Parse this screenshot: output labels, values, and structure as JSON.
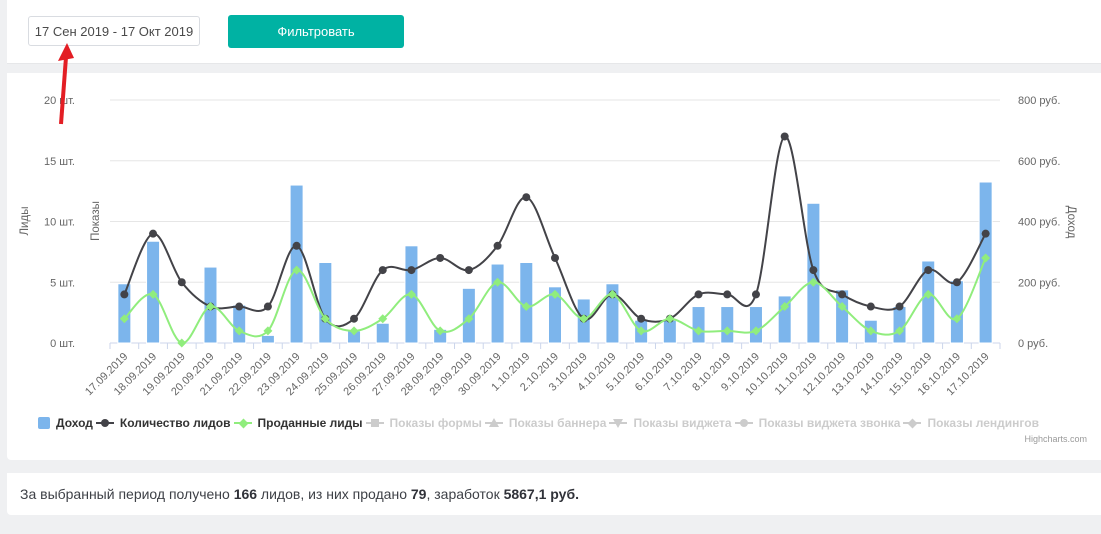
{
  "colors": {
    "accent_teal": "#00b2a3",
    "bar_blue": "#7cb5ec",
    "line_dark": "#434348",
    "line_green": "#90ed7d",
    "disabled_gray": "#cccccc",
    "arrow_red": "#e31e24",
    "tick_text": "#666666",
    "gridline": "#e6e6e6",
    "axis_line": "#ccd6eb"
  },
  "header": {
    "date_range": "17 Сен 2019 - 17 Окт 2019",
    "filter_button": "Фильтровать"
  },
  "chart_data": {
    "type": "combo",
    "categories": [
      "17.09.2019",
      "18.09.2019",
      "19.09.2019",
      "20.09.2019",
      "21.09.2019",
      "22.09.2019",
      "23.09.2019",
      "24.09.2019",
      "25.09.2019",
      "26.09.2019",
      "27.09.2019",
      "28.09.2019",
      "29.09.2019",
      "30.09.2019",
      "1.10.2019",
      "2.10.2019",
      "3.10.2019",
      "4.10.2019",
      "5.10.2019",
      "6.10.2019",
      "7.10.2019",
      "8.10.2019",
      "9.10.2019",
      "10.10.2019",
      "11.10.2019",
      "12.10.2019",
      "13.10.2019",
      "14.10.2019",
      "15.10.2019",
      "16.10.2019",
      "17.10.2019"
    ],
    "series": [
      {
        "name": "Доход",
        "type": "bar",
        "axis": "right",
        "color": "#7cb5ec",
        "marker": "square",
        "disabled": false,
        "values": [
          195,
          335,
          0,
          250,
          125,
          25,
          520,
          265,
          40,
          65,
          320,
          45,
          180,
          260,
          265,
          185,
          145,
          195,
          75,
          75,
          120,
          120,
          120,
          155,
          460,
          175,
          75,
          120,
          270,
          205,
          530
        ]
      },
      {
        "name": "Количество лидов",
        "type": "line",
        "axis": "left",
        "color": "#434348",
        "marker": "circle",
        "disabled": false,
        "values": [
          4,
          9,
          5,
          3,
          3,
          3,
          8,
          2,
          2,
          6,
          6,
          7,
          6,
          8,
          12,
          7,
          2,
          4,
          2,
          2,
          4,
          4,
          4,
          17,
          6,
          4,
          3,
          3,
          6,
          5,
          9
        ]
      },
      {
        "name": "Проданные лиды",
        "type": "line",
        "axis": "left",
        "color": "#90ed7d",
        "marker": "diamond",
        "disabled": false,
        "values": [
          2,
          4,
          0,
          3,
          1,
          1,
          6,
          2,
          1,
          2,
          4,
          1,
          2,
          5,
          3,
          4,
          2,
          4,
          1,
          2,
          1,
          1,
          1,
          3,
          5,
          3,
          1,
          1,
          4,
          2,
          7
        ]
      },
      {
        "name": "Показы формы",
        "type": "line",
        "axis": "left",
        "color": "#cccccc",
        "marker": "squareS",
        "disabled": true,
        "values": []
      },
      {
        "name": "Показы баннера",
        "type": "line",
        "axis": "left",
        "color": "#cccccc",
        "marker": "triup",
        "disabled": true,
        "values": []
      },
      {
        "name": "Показы виджета",
        "type": "line",
        "axis": "left",
        "color": "#cccccc",
        "marker": "tridown",
        "disabled": true,
        "values": []
      },
      {
        "name": "Показы виджета звонка",
        "type": "line",
        "axis": "left",
        "color": "#cccccc",
        "marker": "circle",
        "disabled": true,
        "values": []
      },
      {
        "name": "Показы лендингов",
        "type": "line",
        "axis": "left",
        "color": "#cccccc",
        "marker": "diamond",
        "disabled": true,
        "values": []
      }
    ],
    "left_axis": {
      "titles": [
        "Лиды",
        "Показы"
      ],
      "ticks": [
        "0 шт.",
        "5 шт.",
        "10 шт.",
        "15 шт.",
        "20 шт."
      ],
      "min": 0,
      "max": 20
    },
    "right_axis": {
      "title": "Доход",
      "ticks": [
        "0 руб.",
        "200 руб.",
        "400 руб.",
        "600 руб.",
        "800 руб."
      ],
      "min": 0,
      "max": 800
    },
    "grid": true,
    "legend_position": "bottom",
    "credits": "Highcharts.com"
  },
  "summary": {
    "prefix": "За выбранный период получено ",
    "leads_total": "166",
    "mid1": " лидов, из них продано ",
    "sold_total": "79",
    "mid2": ", заработок ",
    "revenue_total": "5867,1 руб."
  }
}
